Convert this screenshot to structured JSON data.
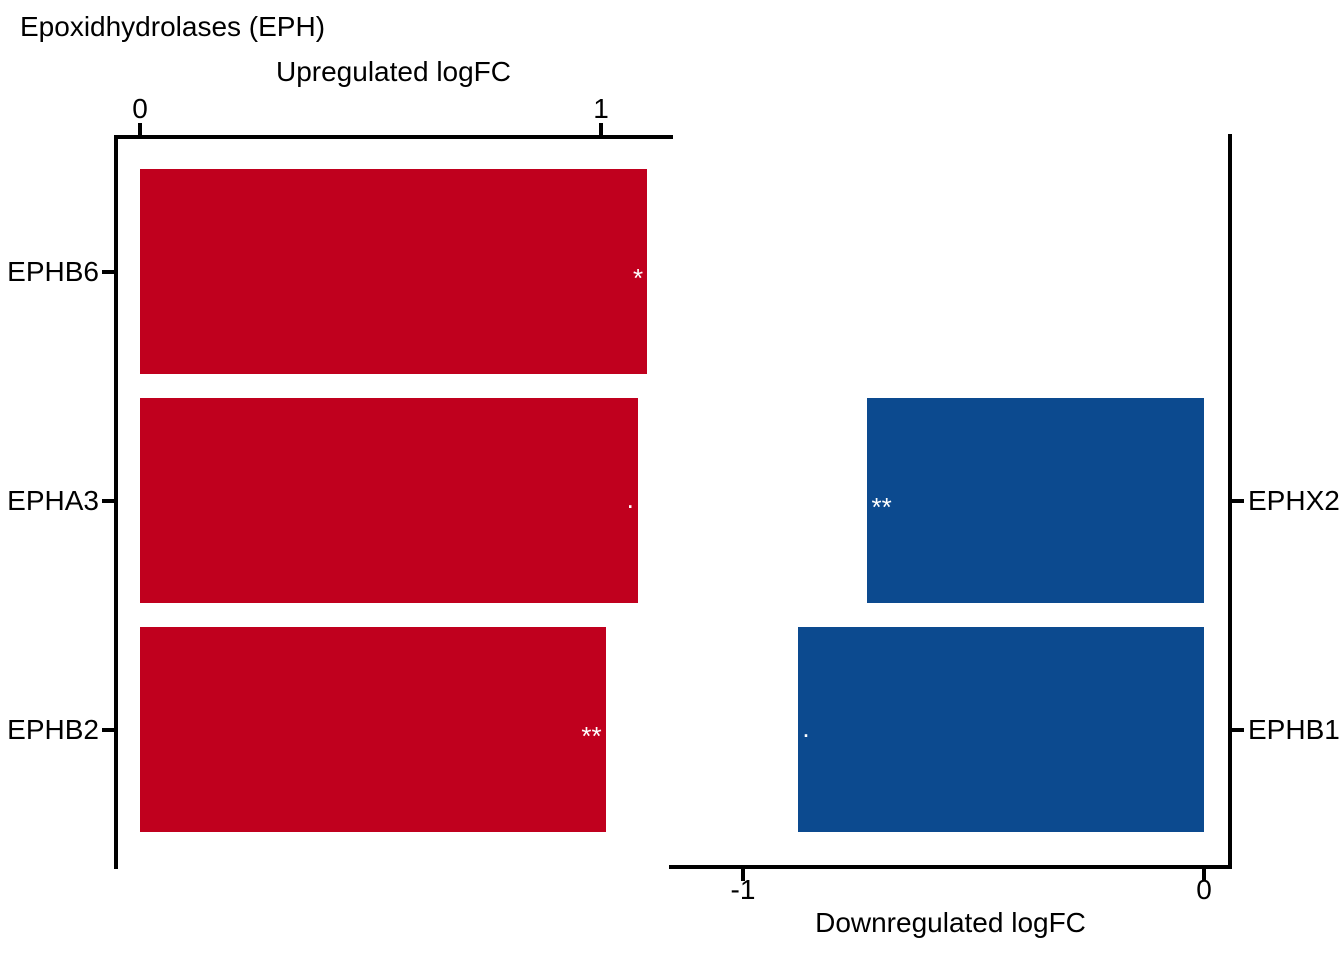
{
  "chart_data": {
    "type": "bar",
    "orientation": "horizontal",
    "title": "Epoxidhydrolases (EPH)",
    "grid": false,
    "background_color": "#FFFFFF",
    "axis_color": "#000000",
    "text_color": "#000000",
    "significance_marker_color": "#FFFFFF",
    "panels": [
      {
        "id": "upregulated",
        "axis_title": "Upregulated logFC",
        "axis_side": "top",
        "gene_label_side": "left",
        "bar_color": "#C0001E",
        "xlim": [
          -0.06,
          1.16
        ],
        "ticks": [
          0,
          1
        ],
        "bars": [
          {
            "gene": "EPHB6",
            "logFC": 1.1,
            "significance": "*",
            "row": 0
          },
          {
            "gene": "EPHA3",
            "logFC": 1.08,
            "significance": ".",
            "row": 1
          },
          {
            "gene": "EPHB2",
            "logFC": 1.01,
            "significance": "**",
            "row": 2
          }
        ]
      },
      {
        "id": "downregulated",
        "axis_title": "Downregulated logFC",
        "axis_side": "bottom",
        "gene_label_side": "right",
        "bar_color": "#0C4A8F",
        "xlim": [
          -1.16,
          0.06
        ],
        "ticks": [
          -1,
          0
        ],
        "bars": [
          {
            "gene": "EPHX2",
            "logFC": -0.73,
            "significance": "**",
            "row": 1
          },
          {
            "gene": "EPHB1",
            "logFC": -0.88,
            "significance": ".",
            "row": 2
          }
        ]
      }
    ]
  }
}
